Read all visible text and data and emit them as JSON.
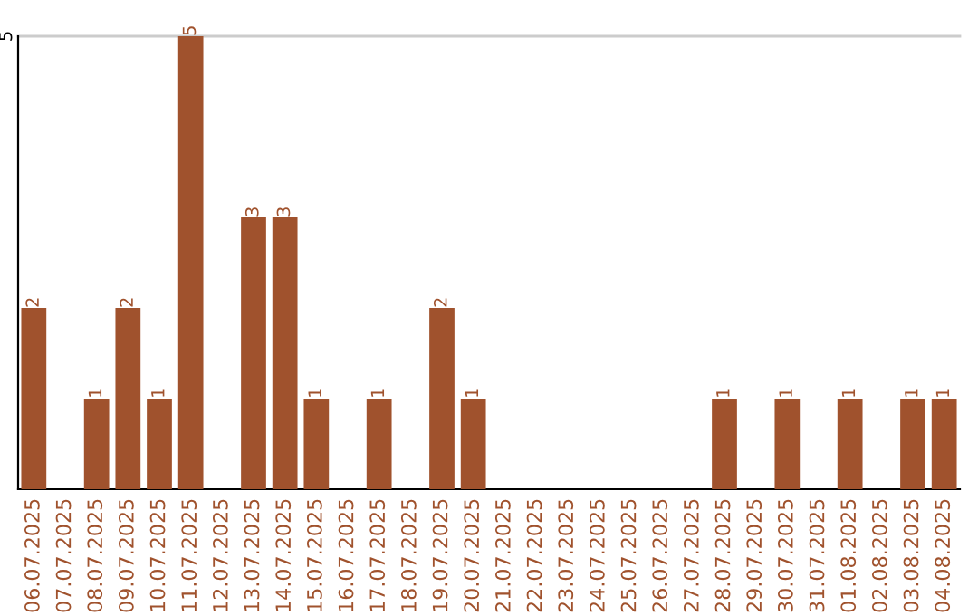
{
  "chart_data": {
    "type": "bar",
    "categories": [
      "06.07.2025",
      "07.07.2025",
      "08.07.2025",
      "09.07.2025",
      "10.07.2025",
      "11.07.2025",
      "12.07.2025",
      "13.07.2025",
      "14.07.2025",
      "15.07.2025",
      "16.07.2025",
      "17.07.2025",
      "18.07.2025",
      "19.07.2025",
      "20.07.2025",
      "21.07.2025",
      "22.07.2025",
      "23.07.2025",
      "24.07.2025",
      "25.07.2025",
      "26.07.2025",
      "27.07.2025",
      "28.07.2025",
      "29.07.2025",
      "30.07.2025",
      "31.07.2025",
      "01.08.2025",
      "02.08.2025",
      "03.08.2025",
      "04.08.2025"
    ],
    "values": [
      2,
      0,
      1,
      2,
      1,
      5,
      0,
      3,
      3,
      1,
      0,
      1,
      0,
      2,
      1,
      0,
      0,
      0,
      0,
      0,
      0,
      0,
      1,
      0,
      1,
      0,
      1,
      0,
      1,
      1
    ],
    "value_labels": [
      "2",
      null,
      "1",
      "2",
      "1",
      "5",
      null,
      "3",
      "3",
      "1",
      null,
      "1",
      null,
      "2",
      "1",
      null,
      null,
      null,
      null,
      null,
      null,
      null,
      "1",
      null,
      "1",
      null,
      "1",
      null,
      "1",
      "1"
    ],
    "color": "#a0522d",
    "ylim": [
      0,
      5
    ],
    "yticks": [
      5
    ],
    "ref_lines": [
      {
        "axis": "y",
        "value": 5,
        "color": "#cccccc"
      }
    ]
  }
}
